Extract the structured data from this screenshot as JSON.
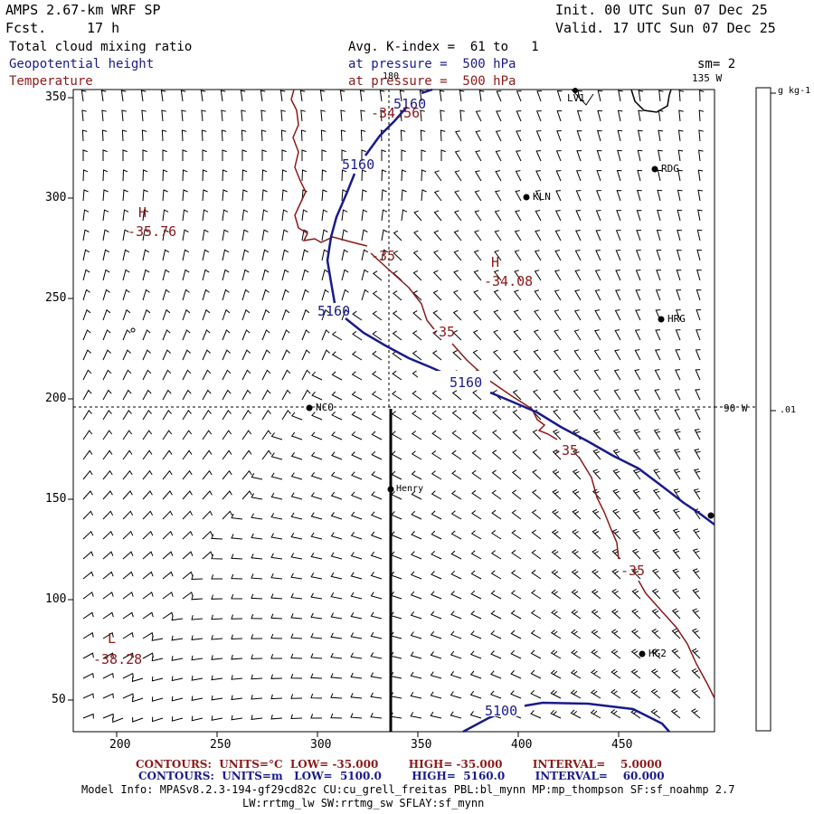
{
  "header": {
    "model": "AMPS 2.67-km WRF SP",
    "fcst_label": "Fcst.",
    "fcst_value": "17 h",
    "init": "Init. 00 UTC Sun 07 Dec 25",
    "valid": "Valid. 17 UTC Sun 07 Dec 25",
    "field1": "Total cloud mixing ratio",
    "field2": "Geopotential height",
    "field3": "Temperature",
    "avg": "Avg. K-index =  61 to   1",
    "pres1": "at pressure =  500 hPa",
    "pres2": "at pressure =  500 hPa",
    "sm": "sm= 2"
  },
  "map": {
    "x_ticks": [
      "200",
      "250",
      "300",
      "350",
      "400",
      "450"
    ],
    "y_ticks": [
      "350",
      "300",
      "250",
      "200",
      "150",
      "100",
      "50"
    ],
    "meridian_labels": {
      "top": "180",
      "top_right": "135 W",
      "right": "90 W"
    },
    "stations": [
      "LV1",
      "RDG",
      "KLN",
      "HRG",
      "NCO",
      "Henry",
      "HG2"
    ],
    "height_labels": [
      "5160",
      "5160",
      "5160",
      "5160",
      "5100"
    ],
    "temp_labels": [
      "-34.56",
      "-35",
      "-35",
      "-35",
      "-35"
    ],
    "highs": [
      {
        "letter": "H",
        "value": "-35.76"
      },
      {
        "letter": "H",
        "value": "-34.08"
      }
    ],
    "lows": [
      {
        "letter": "L",
        "value": "-38.28"
      }
    ]
  },
  "colorbar": {
    "units": "g kg-1",
    "tick": ".01"
  },
  "colors": {
    "height": "#1a1a8c",
    "temperature": "#8b1a1a",
    "background": "#ffffff"
  },
  "footer": {
    "temp_line": "CONTOURS:  UNITS=°C  LOW= -35.000        HIGH= -35.000        INTERVAL=    5.0000",
    "height_line": "CONTOURS:  UNITS=m   LOW=  5100.0        HIGH=  5160.0        INTERVAL=    60.000",
    "info1": "Model Info: MPASv8.2.3-194-gf29cd82c CU:cu_grell_freitas PBL:bl_mynn MP:mp_thompson SF:sf_noahmp 2.7",
    "info2": "LW:rrtmg_lw SW:rrtmg_sw SFLAY:sf_mynn"
  }
}
